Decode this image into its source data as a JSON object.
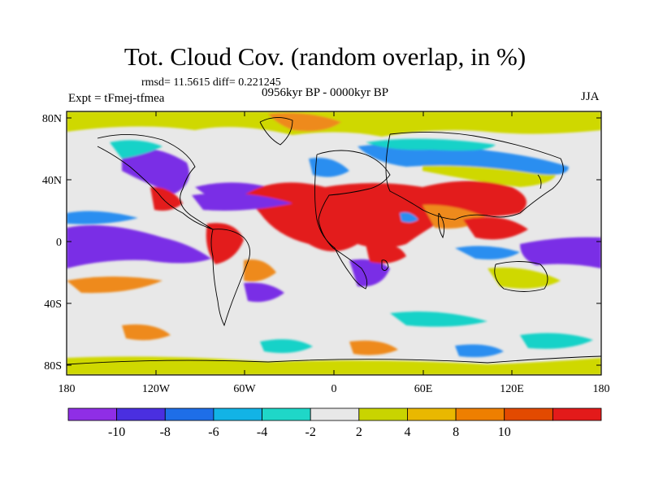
{
  "title": "Tot. Cloud Cov. (random overlap, in %)",
  "stats": "rmsd= 11.5615 diff= 0.221245",
  "experiment": "Expt = tFmej-tfmea",
  "period": "0956kyr BP - 0000kyr BP",
  "season": "JJA",
  "axes": {
    "y_ticks": [
      "80N",
      "40N",
      "0",
      "40S",
      "80S"
    ],
    "x_ticks": [
      "180",
      "120W",
      "60W",
      "0",
      "60E",
      "120E",
      "180"
    ]
  },
  "colorbar": {
    "labels": [
      "-10",
      "-8",
      "-6",
      "-4",
      "-2",
      "2",
      "4",
      "8",
      "10"
    ],
    "colors": [
      "#8f2ee6",
      "#4a2fe0",
      "#1e6ee8",
      "#12b3e6",
      "#1fd7c8",
      "#e8e8e8",
      "#c9d400",
      "#e9b800",
      "#ee7f00",
      "#e34a00",
      "#e31a1a"
    ]
  },
  "palette": {
    "red": "#e31a1a",
    "orange": "#ee8a1a",
    "yellow": "#cfd800",
    "purple": "#7a2fe6",
    "blue": "#2a8ef0",
    "cyan": "#19d2c8",
    "neutral": "#e8e8e8"
  }
}
